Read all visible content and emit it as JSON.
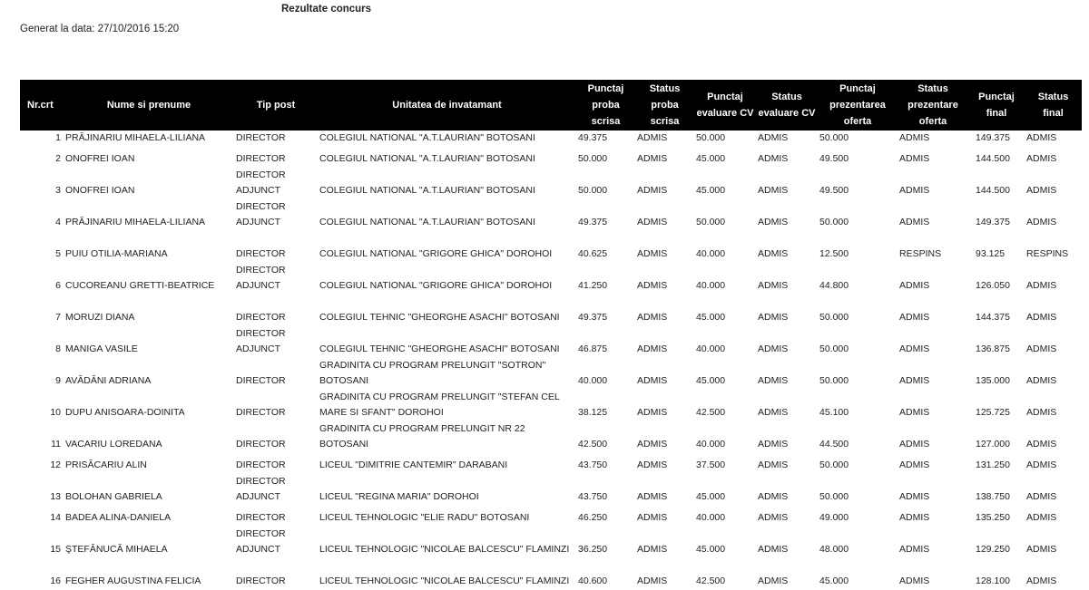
{
  "title": "Rezultate concurs",
  "generated": "Generat la data: 27/10/2016 15:20",
  "columns": [
    "Nr.crt",
    "Nume si prenume",
    "Tip post",
    "Unitatea de invatamant",
    "Punctaj proba scrisa",
    "Status proba scrisa",
    "Punctaj evaluare CV",
    "Status evaluare CV",
    "Punctaj prezentarea oferta",
    "Status prezentare oferta",
    "Punctaj final",
    "Status final"
  ],
  "rows": [
    [
      "1",
      "PRĂJINARIU MIHAELA-LILIANA",
      "DIRECTOR",
      "COLEGIUL NATIONAL \"A.T.LAURIAN\" BOTOSANI",
      "49.375",
      "ADMIS",
      "50.000",
      "ADMIS",
      "50.000",
      "ADMIS",
      "149.375",
      "ADMIS"
    ],
    [
      "2",
      "ONOFREI IOAN",
      "DIRECTOR",
      "COLEGIUL NATIONAL \"A.T.LAURIAN\" BOTOSANI",
      "50.000",
      "ADMIS",
      "45.000",
      "ADMIS",
      "49.500",
      "ADMIS",
      "144.500",
      "ADMIS"
    ],
    [
      "3",
      "ONOFREI IOAN",
      "DIRECTOR ADJUNCT",
      "COLEGIUL NATIONAL \"A.T.LAURIAN\" BOTOSANI",
      "50.000",
      "ADMIS",
      "45.000",
      "ADMIS",
      "49.500",
      "ADMIS",
      "144.500",
      "ADMIS"
    ],
    [
      "4",
      "PRĂJINARIU MIHAELA-LILIANA",
      "DIRECTOR ADJUNCT",
      "COLEGIUL NATIONAL \"A.T.LAURIAN\" BOTOSANI",
      "49.375",
      "ADMIS",
      "50.000",
      "ADMIS",
      "50.000",
      "ADMIS",
      "149.375",
      "ADMIS"
    ],
    [
      "5",
      "PUIU OTILIA-MARIANA",
      "DIRECTOR",
      "COLEGIUL NATIONAL \"GRIGORE GHICA\" DOROHOI",
      "40.625",
      "ADMIS",
      "40.000",
      "ADMIS",
      "12.500",
      "RESPINS",
      "93.125",
      "RESPINS"
    ],
    [
      "6",
      "CUCOREANU GRETTI-BEATRICE",
      "DIRECTOR ADJUNCT",
      "COLEGIUL NATIONAL \"GRIGORE GHICA\" DOROHOI",
      "41.250",
      "ADMIS",
      "40.000",
      "ADMIS",
      "44.800",
      "ADMIS",
      "126.050",
      "ADMIS"
    ],
    [
      "7",
      "MORUZI DIANA",
      "DIRECTOR",
      "COLEGIUL TEHNIC \"GHEORGHE ASACHI\" BOTOSANI",
      "49.375",
      "ADMIS",
      "45.000",
      "ADMIS",
      "50.000",
      "ADMIS",
      "144.375",
      "ADMIS"
    ],
    [
      "8",
      "MANIGA VASILE",
      "DIRECTOR ADJUNCT",
      "COLEGIUL TEHNIC \"GHEORGHE ASACHI\" BOTOSANI",
      "46.875",
      "ADMIS",
      "40.000",
      "ADMIS",
      "50.000",
      "ADMIS",
      "136.875",
      "ADMIS"
    ],
    [
      "9",
      "AVĂDĂNI ADRIANA",
      "DIRECTOR",
      "GRADINITA CU PROGRAM PRELUNGIT \"SOTRON\" BOTOSANI",
      "40.000",
      "ADMIS",
      "45.000",
      "ADMIS",
      "50.000",
      "ADMIS",
      "135.000",
      "ADMIS"
    ],
    [
      "10",
      "DUPU ANISOARA-DOINITA",
      "DIRECTOR",
      "GRADINITA CU PROGRAM PRELUNGIT \"STEFAN CEL MARE SI SFANT\" DOROHOI",
      "38.125",
      "ADMIS",
      "42.500",
      "ADMIS",
      "45.100",
      "ADMIS",
      "125.725",
      "ADMIS"
    ],
    [
      "11",
      "VACARIU LOREDANA",
      "DIRECTOR",
      "GRADINITA CU PROGRAM PRELUNGIT NR 22 BOTOSANI",
      "42.500",
      "ADMIS",
      "40.000",
      "ADMIS",
      "44.500",
      "ADMIS",
      "127.000",
      "ADMIS"
    ],
    [
      "12",
      "PRISĂCARIU ALIN",
      "DIRECTOR",
      "LICEUL \"DIMITRIE CANTEMIR\" DARABANI",
      "43.750",
      "ADMIS",
      "37.500",
      "ADMIS",
      "50.000",
      "ADMIS",
      "131.250",
      "ADMIS"
    ],
    [
      "13",
      "BOLOHAN GABRIELA",
      "DIRECTOR ADJUNCT",
      "LICEUL \"REGINA MARIA\" DOROHOI",
      "43.750",
      "ADMIS",
      "45.000",
      "ADMIS",
      "50.000",
      "ADMIS",
      "138.750",
      "ADMIS"
    ],
    [
      "14",
      "BADEA ALINA-DANIELA",
      "DIRECTOR",
      "LICEUL TEHNOLOGIC \"ELIE RADU\" BOTOSANI",
      "46.250",
      "ADMIS",
      "40.000",
      "ADMIS",
      "49.000",
      "ADMIS",
      "135.250",
      "ADMIS"
    ],
    [
      "15",
      "ŞTEFĂNUCĂ MIHAELA",
      "DIRECTOR ADJUNCT",
      "LICEUL TEHNOLOGIC \"NICOLAE BALCESCU\" FLAMINZI",
      "36.250",
      "ADMIS",
      "45.000",
      "ADMIS",
      "48.000",
      "ADMIS",
      "129.250",
      "ADMIS"
    ],
    [
      "16",
      "FEGHER AUGUSTINA FELICIA",
      "DIRECTOR",
      "LICEUL TEHNOLOGIC \"NICOLAE BALCESCU\" FLAMINZI",
      "40.600",
      "ADMIS",
      "42.500",
      "ADMIS",
      "45.000",
      "ADMIS",
      "128.100",
      "ADMIS"
    ]
  ]
}
